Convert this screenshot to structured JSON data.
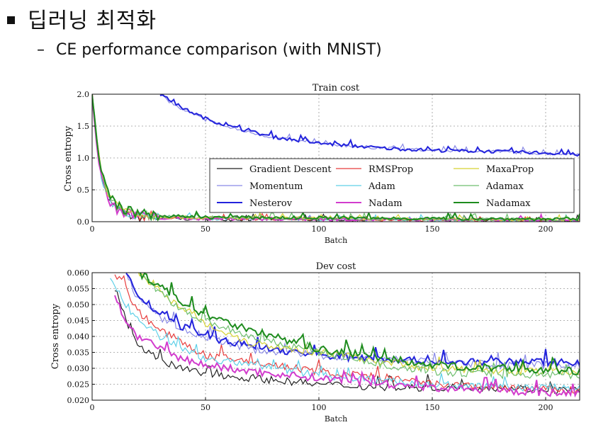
{
  "slide": {
    "title": "딥러닝 최적화",
    "subtitle": "CE performance comparison (with MNIST)"
  },
  "chart_data": [
    {
      "type": "line",
      "title": "Train cost",
      "xlabel": "Batch",
      "ylabel": "Cross entropy",
      "xlim": [
        0,
        215
      ],
      "ylim": [
        0.0,
        2.0
      ],
      "xticks": [
        0,
        50,
        100,
        150,
        200
      ],
      "xtick_labels": [
        "0",
        "50",
        "100",
        "150",
        "200"
      ],
      "yticks": [
        0.0,
        0.5,
        1.0,
        1.5,
        2.0
      ],
      "ytick_labels": [
        "0.0",
        "0.5",
        "1.0",
        "1.5",
        "2.0"
      ],
      "grid": true,
      "legend_position": "right-middle",
      "series": [
        {
          "name": "Gradient Descent",
          "color": "#222222",
          "x": [
            0,
            2,
            4,
            6,
            8,
            10,
            14,
            20,
            30,
            50,
            100,
            150,
            215
          ],
          "values": [
            2.0,
            1.2,
            0.7,
            0.45,
            0.3,
            0.2,
            0.12,
            0.07,
            0.05,
            0.04,
            0.03,
            0.03,
            0.02
          ]
        },
        {
          "name": "Momentum",
          "color": "#8a8ae6",
          "x": [
            30,
            40,
            50,
            60,
            80,
            100,
            130,
            150,
            180,
            200,
            215
          ],
          "values": [
            1.98,
            1.75,
            1.6,
            1.48,
            1.32,
            1.22,
            1.15,
            1.12,
            1.1,
            1.07,
            1.06
          ]
        },
        {
          "name": "Nesterov",
          "color": "#2323dc",
          "x": [
            30,
            40,
            50,
            60,
            80,
            100,
            130,
            150,
            180,
            200,
            215
          ],
          "values": [
            2.0,
            1.78,
            1.62,
            1.5,
            1.33,
            1.23,
            1.15,
            1.12,
            1.1,
            1.08,
            1.05
          ]
        },
        {
          "name": "RMSProp",
          "color": "#e83c3c",
          "x": [
            0,
            2,
            4,
            6,
            8,
            10,
            14,
            20,
            30,
            50,
            100,
            150,
            215
          ],
          "values": [
            2.0,
            1.3,
            0.75,
            0.5,
            0.35,
            0.25,
            0.15,
            0.1,
            0.07,
            0.05,
            0.04,
            0.03,
            0.02
          ]
        },
        {
          "name": "Adam",
          "color": "#5fd0e8",
          "x": [
            0,
            2,
            4,
            6,
            8,
            10,
            14,
            20,
            30,
            50,
            100,
            150,
            215
          ],
          "values": [
            2.0,
            1.25,
            0.72,
            0.48,
            0.33,
            0.24,
            0.14,
            0.1,
            0.07,
            0.05,
            0.04,
            0.03,
            0.02
          ]
        },
        {
          "name": "Nadam",
          "color": "#d23ccd",
          "x": [
            0,
            2,
            4,
            6,
            8,
            10,
            14,
            20,
            30,
            50,
            100,
            150,
            215
          ],
          "values": [
            2.0,
            1.2,
            0.7,
            0.46,
            0.32,
            0.22,
            0.13,
            0.09,
            0.06,
            0.05,
            0.04,
            0.03,
            0.02
          ]
        },
        {
          "name": "MaxaProp",
          "color": "#d6d232",
          "x": [
            0,
            2,
            4,
            6,
            8,
            10,
            14,
            20,
            30,
            50,
            100,
            150,
            215
          ],
          "values": [
            2.0,
            1.35,
            0.8,
            0.55,
            0.4,
            0.3,
            0.2,
            0.12,
            0.08,
            0.06,
            0.05,
            0.04,
            0.03
          ]
        },
        {
          "name": "Adamax",
          "color": "#6fbf6f",
          "x": [
            0,
            2,
            4,
            6,
            8,
            10,
            14,
            20,
            30,
            50,
            100,
            150,
            215
          ],
          "values": [
            2.0,
            1.3,
            0.78,
            0.52,
            0.38,
            0.28,
            0.18,
            0.12,
            0.08,
            0.07,
            0.05,
            0.04,
            0.03
          ]
        },
        {
          "name": "Nadamax",
          "color": "#1e8c1e",
          "x": [
            0,
            2,
            4,
            6,
            8,
            10,
            14,
            20,
            30,
            50,
            100,
            150,
            215
          ],
          "values": [
            2.0,
            1.3,
            0.8,
            0.55,
            0.4,
            0.3,
            0.2,
            0.13,
            0.09,
            0.07,
            0.06,
            0.05,
            0.04
          ]
        }
      ]
    },
    {
      "type": "line",
      "title": "Dev cost",
      "xlabel": "Batch",
      "ylabel": "Cross entropy",
      "xlim": [
        0,
        215
      ],
      "ylim": [
        0.02,
        0.06
      ],
      "xticks": [
        0,
        50,
        100,
        150,
        200
      ],
      "xtick_labels": [
        "0",
        "50",
        "100",
        "150",
        "200"
      ],
      "yticks": [
        0.02,
        0.025,
        0.03,
        0.035,
        0.04,
        0.045,
        0.05,
        0.055,
        0.06
      ],
      "ytick_labels": [
        "0.020",
        "0.025",
        "0.030",
        "0.035",
        "0.040",
        "0.045",
        "0.050",
        "0.055",
        "0.060"
      ],
      "grid": true,
      "series": [
        {
          "name": "Gradient Descent",
          "color": "#222222",
          "x": [
            10,
            15,
            20,
            30,
            40,
            50,
            70,
            100,
            130,
            150,
            180,
            215
          ],
          "values": [
            0.055,
            0.045,
            0.038,
            0.032,
            0.03,
            0.028,
            0.027,
            0.025,
            0.024,
            0.024,
            0.024,
            0.023
          ]
        },
        {
          "name": "Momentum",
          "color": "#8a8ae6",
          "x": [
            15,
            20,
            30,
            40,
            50,
            70,
            100,
            130,
            150,
            180,
            215
          ],
          "values": [
            0.06,
            0.052,
            0.046,
            0.042,
            0.04,
            0.036,
            0.034,
            0.033,
            0.032,
            0.031,
            0.031
          ]
        },
        {
          "name": "Nesterov",
          "color": "#2323dc",
          "x": [
            15,
            20,
            30,
            40,
            50,
            70,
            100,
            130,
            150,
            180,
            215
          ],
          "values": [
            0.06,
            0.053,
            0.047,
            0.043,
            0.04,
            0.037,
            0.034,
            0.033,
            0.032,
            0.032,
            0.032
          ]
        },
        {
          "name": "RMSProp",
          "color": "#e83c3c",
          "x": [
            10,
            15,
            20,
            30,
            40,
            50,
            70,
            100,
            130,
            150,
            180,
            215
          ],
          "values": [
            0.06,
            0.055,
            0.048,
            0.042,
            0.038,
            0.034,
            0.032,
            0.029,
            0.027,
            0.025,
            0.024,
            0.023
          ]
        },
        {
          "name": "Adam",
          "color": "#5fd0e8",
          "x": [
            8,
            15,
            20,
            30,
            40,
            50,
            70,
            100,
            130,
            150,
            180,
            215
          ],
          "values": [
            0.058,
            0.05,
            0.045,
            0.04,
            0.036,
            0.033,
            0.031,
            0.028,
            0.026,
            0.025,
            0.024,
            0.024
          ]
        },
        {
          "name": "Nadam",
          "color": "#d23ccd",
          "x": [
            10,
            15,
            20,
            30,
            40,
            50,
            70,
            100,
            130,
            150,
            180,
            215
          ],
          "values": [
            0.052,
            0.045,
            0.04,
            0.036,
            0.033,
            0.031,
            0.029,
            0.027,
            0.025,
            0.024,
            0.023,
            0.022
          ]
        },
        {
          "name": "MaxaProp",
          "color": "#d6d232",
          "x": [
            20,
            30,
            40,
            50,
            70,
            100,
            130,
            150,
            180,
            215
          ],
          "values": [
            0.06,
            0.055,
            0.048,
            0.044,
            0.038,
            0.035,
            0.032,
            0.03,
            0.029,
            0.029
          ]
        },
        {
          "name": "Adamax",
          "color": "#6fbf6f",
          "x": [
            20,
            30,
            40,
            50,
            70,
            100,
            130,
            150,
            180,
            215
          ],
          "values": [
            0.06,
            0.054,
            0.048,
            0.045,
            0.04,
            0.035,
            0.031,
            0.029,
            0.028,
            0.028
          ]
        },
        {
          "name": "Nadamax",
          "color": "#1e8c1e",
          "x": [
            20,
            30,
            40,
            50,
            70,
            100,
            130,
            150,
            180,
            215
          ],
          "values": [
            0.06,
            0.056,
            0.05,
            0.047,
            0.042,
            0.036,
            0.033,
            0.031,
            0.03,
            0.029
          ]
        }
      ]
    }
  ]
}
